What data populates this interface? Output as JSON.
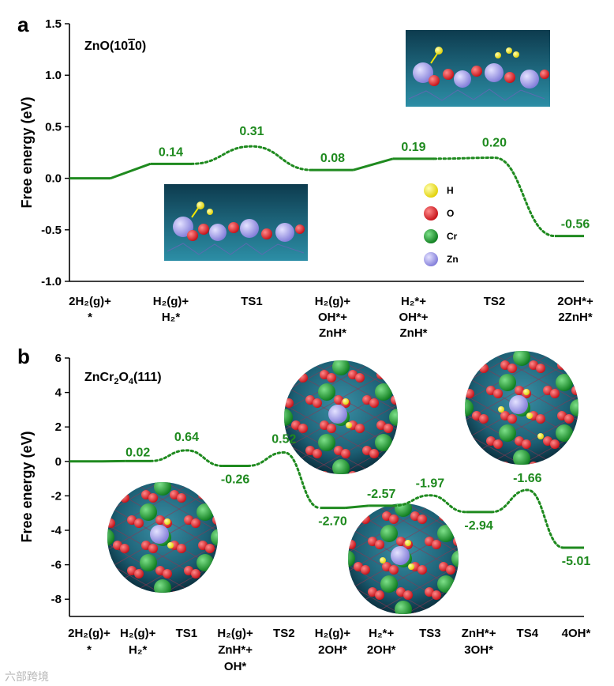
{
  "chart_data": [
    {
      "panel": "a",
      "type": "line",
      "title": "ZnO(10",
      "title_overbar": "1",
      "title_tail": "0)",
      "ylabel": "Free energy (eV)",
      "ylim": [
        -1.0,
        1.5
      ],
      "yticks": [
        "-1.0",
        "-0.5",
        "0.0",
        "0.5",
        "1.0",
        "1.5"
      ],
      "ytick_values": [
        -1.0,
        -0.5,
        0.0,
        0.5,
        1.0,
        1.5
      ],
      "categories": [
        [
          "2H₂(g)+",
          "*"
        ],
        [
          "H₂(g)+",
          "H₂*"
        ],
        [
          "TS1"
        ],
        [
          "H₂(g)+",
          "OH*+",
          "ZnH*"
        ],
        [
          "H₂*+",
          "OH*+",
          "ZnH*"
        ],
        [
          "TS2"
        ],
        [
          "2OH*+",
          "2ZnH*"
        ]
      ],
      "values": [
        0.0,
        0.14,
        0.31,
        0.08,
        0.19,
        0.2,
        -0.56
      ],
      "value_labels": [
        "",
        "0.14",
        "0.31",
        "0.08",
        "0.19",
        "0.20",
        "-0.56"
      ],
      "transition_states": [
        2,
        5
      ],
      "legend": [
        {
          "symbol": "H",
          "color": "#f2e600"
        },
        {
          "symbol": "O",
          "color": "#e8141c"
        },
        {
          "symbol": "Cr",
          "color": "#119c25"
        },
        {
          "symbol": "Zn",
          "color": "#9a96e6"
        }
      ],
      "line_color": "#1f8a1f"
    },
    {
      "panel": "b",
      "type": "line",
      "title": "ZnCr",
      "title_sub1": "2",
      "title_mid": "O",
      "title_sub2": "4",
      "title_tail": "(111)",
      "ylabel": "Free energy (eV)",
      "ylim": [
        -9,
        6
      ],
      "yticks": [
        "-8",
        "-6",
        "-4",
        "-2",
        "0",
        "2",
        "4",
        "6"
      ],
      "ytick_values": [
        -8,
        -6,
        -4,
        -2,
        0,
        2,
        4,
        6
      ],
      "categories": [
        [
          "2H₂(g)+",
          "*"
        ],
        [
          "H₂(g)+",
          "H₂*"
        ],
        [
          "TS1"
        ],
        [
          "H₂(g)+",
          "ZnH*+",
          "OH*"
        ],
        [
          "TS2"
        ],
        [
          "H₂(g)+",
          "2OH*"
        ],
        [
          "H₂*+",
          "2OH*"
        ],
        [
          "TS3"
        ],
        [
          "ZnH*+",
          "3OH*"
        ],
        [
          "TS4"
        ],
        [
          "4OH*"
        ]
      ],
      "values": [
        0.0,
        0.02,
        0.64,
        -0.26,
        0.52,
        -2.7,
        -2.57,
        -1.97,
        -2.94,
        -1.66,
        -5.01
      ],
      "value_labels": [
        "",
        "0.02",
        "0.64",
        "-0.26",
        "0.52",
        "-2.70",
        "-2.57",
        "-1.97",
        "-2.94",
        "-1.66",
        "-5.01"
      ],
      "transition_states": [
        2,
        4,
        7,
        9
      ],
      "line_color": "#1f8a1f"
    }
  ],
  "watermark": "六部跨境"
}
